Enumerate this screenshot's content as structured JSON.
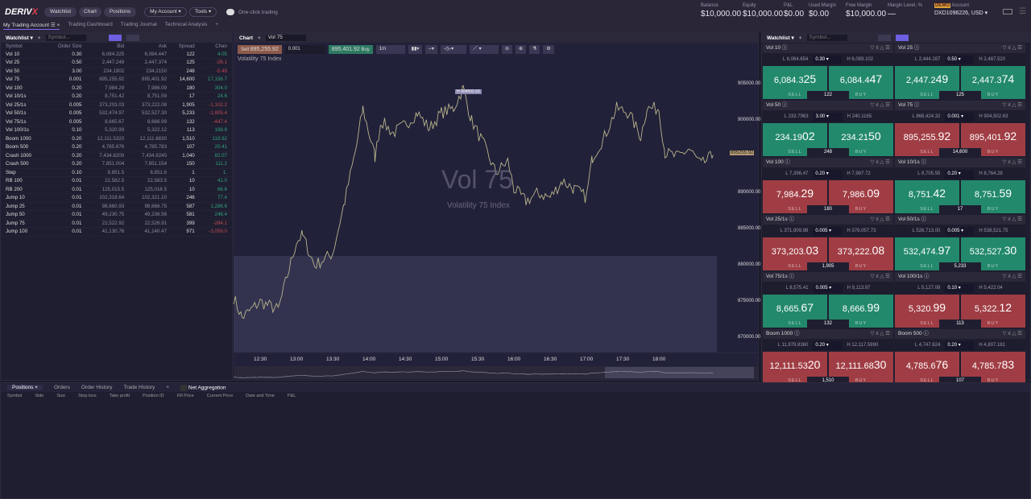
{
  "app": {
    "logo": "DERIV",
    "logo_x": "X",
    "nav": [
      "Watchlist",
      "Chart",
      "Positions"
    ],
    "my_account": "My Account ▾",
    "tools": "Tools ▾",
    "one_click": "One-click trading"
  },
  "account": {
    "stats": [
      {
        "label": "Balance",
        "value": "$10,000.00"
      },
      {
        "label": "Equity",
        "value": "$10,000.00"
      },
      {
        "label": "P&L",
        "value": "$0.00"
      },
      {
        "label": "Used Margin",
        "value": "$0.00"
      },
      {
        "label": "Free Margin",
        "value": "$10,000.00"
      },
      {
        "label": "Margin Level, %",
        "value": "—"
      }
    ],
    "badge": "DEMO",
    "label": "Account",
    "id": "DXD1096226, USD ▾"
  },
  "tabs": [
    "My Trading Account ☰ ×",
    "Trading Dashboard",
    "Trading Journal",
    "Technical Analysis",
    "+"
  ],
  "watchlist": {
    "title": "Watchlist ▾",
    "placeholder": "Symbol...",
    "columns": [
      "Symbol",
      "Order Size",
      "Bid",
      "Ask",
      "Spread",
      "Chan"
    ],
    "rows": [
      [
        "Vol 10",
        "0.30",
        "6,084.325",
        "6,084.447",
        "122",
        "4.05"
      ],
      [
        "Vol 25",
        "0.50",
        "2,447.249",
        "2,447.374",
        "125",
        "-26.1"
      ],
      [
        "Vol 50",
        "3.00",
        "234.1902",
        "234.2150",
        "248",
        "-5.49"
      ],
      [
        "Vol 75",
        "0.001",
        "895,255.92",
        "895,401.92",
        "14,600",
        "17,156.7"
      ],
      [
        "Vol 100",
        "0.20",
        "7,984.29",
        "7,986.09",
        "180",
        "304.0"
      ],
      [
        "Vol 10/1s",
        "0.20",
        "8,751.42",
        "8,751.59",
        "17",
        "24.6"
      ],
      [
        "Vol 25/1s",
        "0.005",
        "373,203.03",
        "373,222.08",
        "1,905",
        "-1,102.2"
      ],
      [
        "Vol 50/1s",
        "0.005",
        "532,474.97",
        "532,527.30",
        "5,233",
        "-1,805.4"
      ],
      [
        "Vol 75/1s",
        "0.005",
        "8,665.67",
        "8,666.99",
        "132",
        "-447.4"
      ],
      [
        "Vol 100/1s",
        "0.10",
        "5,320.99",
        "5,322.12",
        "113",
        "188.8"
      ],
      [
        "Boom 1000",
        "0.20",
        "12,111.5320",
        "12,111.6830",
        "1,510",
        "119.92"
      ],
      [
        "Boom 500",
        "0.20",
        "4,785.676",
        "4,785.783",
        "107",
        "20.41"
      ],
      [
        "Crash 1000",
        "0.20",
        "7,434.8200",
        "7,434.9240",
        "1,040",
        "82.07"
      ],
      [
        "Crash 500",
        "0.20",
        "7,851.004",
        "7,851.154",
        "150",
        "111.2"
      ],
      [
        "Step",
        "0.10",
        "8,851.5",
        "8,851.6",
        "1",
        "1."
      ],
      [
        "RB 100",
        "0.01",
        "22,582.5",
        "22,583.5",
        "10",
        "41.0"
      ],
      [
        "RB 200",
        "0.01",
        "125,015.5",
        "125,016.5",
        "10",
        "66.6"
      ],
      [
        "Jump 10",
        "0.01",
        "102,318.64",
        "102,321.10",
        "246",
        "77.4"
      ],
      [
        "Jump 25",
        "0.01",
        "98,660.93",
        "98,666.75",
        "587",
        "1,286.6"
      ],
      [
        "Jump 50",
        "0.01",
        "49,230.75",
        "49,236.56",
        "581",
        "248.4"
      ],
      [
        "Jump 75",
        "0.01",
        "22,522.92",
        "22,526.91",
        "399",
        "-284.1"
      ],
      [
        "Jump 100",
        "0.01",
        "41,130.76",
        "41,140.47",
        "971",
        "-3,059.0"
      ]
    ]
  },
  "chart": {
    "title": "Chart",
    "symbol": "Vol 75",
    "sell_label": "Sell",
    "sell": "895,255.92",
    "size": "0.001",
    "buy": "895,401.92",
    "buy_label": "Buy",
    "timeframe": "1m",
    "index_name": "Volatility 75 Index",
    "watermark": "Vol 75",
    "high_marker": "H 904502.63",
    "last_price": "895255.92",
    "y_ticks": [
      "905000.00",
      "900000.00",
      "890000.00",
      "885000.00",
      "880000.00",
      "875000.00",
      "870000.00"
    ],
    "x_ticks": [
      "12:30",
      "13:00",
      "13:30",
      "14:00",
      "14:30",
      "15:00",
      "15:30",
      "16:00",
      "16:30",
      "17:00",
      "17:30",
      "18:00"
    ],
    "series": {
      "times": [
        "12:08",
        "12:15",
        "12:30",
        "12:45",
        "13:00",
        "13:05",
        "13:15",
        "13:30",
        "13:40",
        "13:50",
        "13:55",
        "14:00",
        "14:05",
        "14:10",
        "14:20",
        "14:30",
        "14:40",
        "14:50",
        "15:00",
        "15:10",
        "15:18",
        "15:25",
        "15:35",
        "15:45",
        "15:55",
        "16:00",
        "16:10",
        "16:20",
        "16:30",
        "16:40",
        "16:50",
        "17:00",
        "17:05",
        "17:15",
        "17:25",
        "17:35",
        "17:45",
        "17:50",
        "18:00",
        "18:05",
        "18:15",
        "18:25",
        "18:35",
        "18:45"
      ],
      "prices": [
        875600,
        872800,
        875000,
        873900,
        883300,
        884200,
        880000,
        881700,
        888900,
        896700,
        901700,
        898300,
        895000,
        900000,
        898300,
        899400,
        901100,
        898900,
        901100,
        901700,
        904502,
        900000,
        896700,
        892800,
        894400,
        890600,
        888900,
        890000,
        889400,
        891700,
        890600,
        889400,
        895000,
        897800,
        901700,
        901100,
        897800,
        901700,
        901700,
        895600,
        895000,
        896100,
        893900,
        895255
      ]
    }
  },
  "right_watchlist": {
    "title": "Watchlist ▾",
    "placeholder": "Symbol...",
    "sell": "SELL",
    "buy": "BUY",
    "tiles": [
      {
        "name": "Vol 10",
        "low": "L 6,064.654",
        "size": "0.30",
        "high": "H 6,089.102",
        "sell_a": "6,084.3",
        "sell_b": "25",
        "buy_a": "6,084.4",
        "buy_b": "47",
        "spread": "122",
        "color": "green"
      },
      {
        "name": "Vol 25",
        "low": "L 2,444.287",
        "size": "0.50",
        "high": "H 2,487.520",
        "sell_a": "2,447.2",
        "sell_b": "49",
        "buy_a": "2,447.3",
        "buy_b": "74",
        "spread": "125",
        "color": "green"
      },
      {
        "name": "Vol 50",
        "low": "L 233.7963",
        "size": "3.00",
        "high": "H 240.1165",
        "sell_a": "234.19",
        "sell_b": "02",
        "buy_a": "234.21",
        "buy_b": "50",
        "spread": "248",
        "color": "green"
      },
      {
        "name": "Vol 75",
        "low": "L 868,424.32",
        "size": "0.001",
        "high": "H 904,502.63",
        "sell_a": "895,255.",
        "sell_b": "92",
        "buy_a": "895,401.",
        "buy_b": "92",
        "spread": "14,600",
        "color": "red"
      },
      {
        "name": "Vol 100",
        "low": "L 7,396.47",
        "size": "0.20",
        "high": "H 7,987.72",
        "sell_a": "7,984.",
        "sell_b": "29",
        "buy_a": "7,986.",
        "buy_b": "09",
        "spread": "180",
        "color": "red"
      },
      {
        "name": "Vol 10/1s",
        "low": "L 8,705.55",
        "size": "0.20",
        "high": "H 8,764.28",
        "sell_a": "8,751.",
        "sell_b": "42",
        "buy_a": "8,751.",
        "buy_b": "59",
        "spread": "17",
        "color": "green"
      },
      {
        "name": "Vol 25/1s",
        "low": "L 371,909.98",
        "size": "0.005",
        "high": "H 376,057.73",
        "sell_a": "373,203.",
        "sell_b": "03",
        "buy_a": "373,222.",
        "buy_b": "08",
        "spread": "1,905",
        "color": "red"
      },
      {
        "name": "Vol 50/1s",
        "low": "L 526,713.00",
        "size": "0.005",
        "high": "H 538,521.75",
        "sell_a": "532,474.",
        "sell_b": "97",
        "buy_a": "532,527.",
        "buy_b": "30",
        "spread": "5,233",
        "color": "green"
      },
      {
        "name": "Vol 75/1s",
        "low": "L 8,575.41",
        "size": "0.005",
        "high": "H 9,113.97",
        "sell_a": "8,665.",
        "sell_b": "67",
        "buy_a": "8,666.",
        "buy_b": "99",
        "spread": "132",
        "color": "green"
      },
      {
        "name": "Vol 100/1s",
        "low": "L 5,127.08",
        "size": "0.10",
        "high": "H 5,422.04",
        "sell_a": "5,320.",
        "sell_b": "99",
        "buy_a": "5,322.",
        "buy_b": "12",
        "spread": "113",
        "color": "red"
      },
      {
        "name": "Boom 1000",
        "low": "L 11,979.8360",
        "size": "0.20",
        "high": "H 12,117.5990",
        "sell_a": "12,111.53",
        "sell_b": "20",
        "buy_a": "12,111.68",
        "buy_b": "30",
        "spread": "1,510",
        "color": "red"
      },
      {
        "name": "Boom 500",
        "low": "L 4,747.624",
        "size": "0.20",
        "high": "H 4,807.181",
        "sell_a": "4,785.6",
        "sell_b": "76",
        "buy_a": "4,785.7",
        "buy_b": "83",
        "spread": "107",
        "color": "red"
      }
    ]
  },
  "bottom": {
    "tabs": [
      "Positions ×",
      "Orders",
      "Order History",
      "Trade History",
      "+"
    ],
    "net_aggregation": "Net Aggregation",
    "columns": [
      "Symbol",
      "Side",
      "Size",
      "Stop loss",
      "Take profit",
      "Position ID",
      "Fill Price",
      "Current Price",
      "Date and Time",
      "P&L"
    ]
  },
  "colors": {
    "green": "#23896c",
    "red": "#a03d44",
    "accent": "#6c5fe0",
    "background": "#1c1b2b"
  }
}
